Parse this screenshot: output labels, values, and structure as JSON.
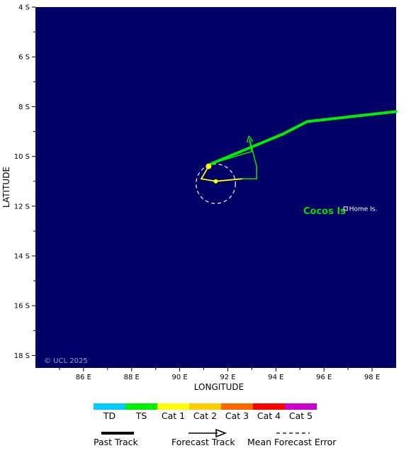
{
  "map": {
    "background": "#000066",
    "xlabel": "LONGITUDE",
    "ylabel": "LATITUDE",
    "lon_range": [
      84,
      99
    ],
    "lat_range": [
      -4,
      -18.5
    ],
    "lon_ticks": [
      {
        "value": 86,
        "label": "86 E"
      },
      {
        "value": 88,
        "label": "88 E"
      },
      {
        "value": 90,
        "label": "90 E"
      },
      {
        "value": 92,
        "label": "92 E"
      },
      {
        "value": 94,
        "label": "94 E"
      },
      {
        "value": 96,
        "label": "96 E"
      },
      {
        "value": 98,
        "label": "98 E"
      }
    ],
    "lat_ticks": [
      {
        "value": -4,
        "label": "4 S"
      },
      {
        "value": -6,
        "label": "6 S"
      },
      {
        "value": -8,
        "label": "8 S"
      },
      {
        "value": -10,
        "label": "10 S"
      },
      {
        "value": -12,
        "label": "12 S"
      },
      {
        "value": -14,
        "label": "14 S"
      },
      {
        "value": -16,
        "label": "16 S"
      },
      {
        "value": -18,
        "label": "18 S"
      }
    ],
    "copyright": "© UCL 2025",
    "island_label": "Cocos Is",
    "town_label": "Home Is.",
    "town_position": [
      96.9,
      -12.1
    ]
  },
  "tracks": {
    "past": {
      "color": "#00ee00",
      "points": [
        [
          99,
          -8.2
        ],
        [
          95.3,
          -8.6
        ],
        [
          94.3,
          -9.1
        ],
        [
          91.3,
          -10.3
        ]
      ]
    },
    "loop": {
      "color": "#00ee00",
      "points": [
        [
          91.3,
          -10.3
        ],
        [
          93,
          -9.8
        ],
        [
          92.9,
          -9.3
        ],
        [
          93.2,
          -10.4
        ],
        [
          93.2,
          -10.9
        ],
        [
          92.6,
          -10.9
        ]
      ]
    },
    "forecast": {
      "color": "#ffff00",
      "points": [
        [
          92.6,
          -10.9
        ],
        [
          91.5,
          -11
        ],
        [
          90.9,
          -10.9
        ],
        [
          91.2,
          -10.4
        ]
      ]
    },
    "positions": [
      [
        91.2,
        -10.4
      ],
      [
        91.5,
        -11
      ]
    ],
    "error_circle": {
      "center": [
        91.5,
        -11.1
      ],
      "radius_deg": 0.82
    }
  },
  "legend": {
    "categories": [
      {
        "label": "TD",
        "color": "#00ccff"
      },
      {
        "label": "TS",
        "color": "#00ee00"
      },
      {
        "label": "Cat 1",
        "color": "#ffff00"
      },
      {
        "label": "Cat 2",
        "color": "#ffcc00"
      },
      {
        "label": "Cat 3",
        "color": "#ff6600"
      },
      {
        "label": "Cat 4",
        "color": "#ff0000"
      },
      {
        "label": "Cat 5",
        "color": "#cc00cc"
      }
    ],
    "past_track": "Past Track",
    "forecast_track": "Forecast Track",
    "mean_error": "Mean Forecast Error"
  }
}
